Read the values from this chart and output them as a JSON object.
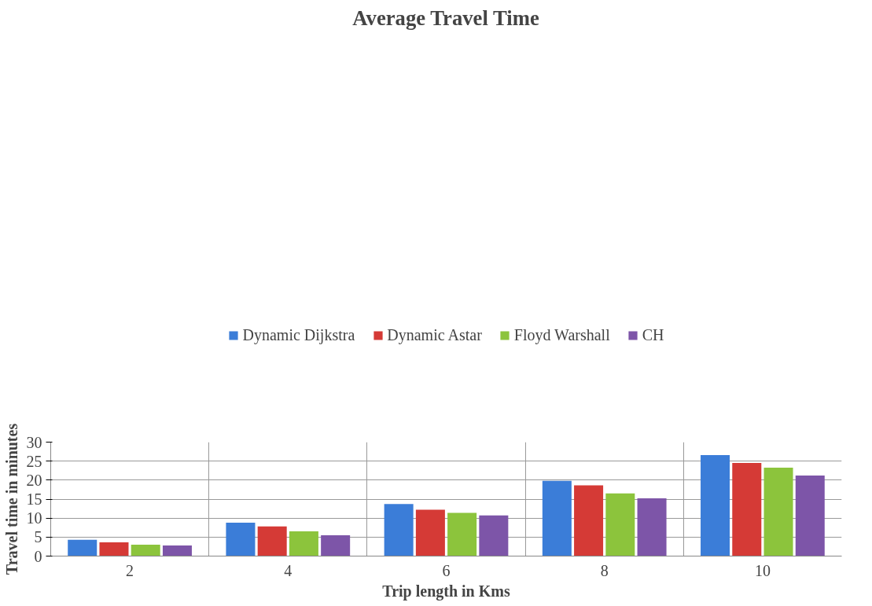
{
  "chart_data": {
    "type": "bar",
    "title": "Average Travel Time",
    "xlabel": "Trip length in Kms",
    "ylabel": "Travel time in minutes",
    "categories": [
      "2",
      "4",
      "6",
      "8",
      "10"
    ],
    "series": [
      {
        "name": "Dynamic Dijkstra",
        "color": "#3b7dd8",
        "values": [
          4.3,
          8.8,
          13.7,
          19.8,
          26.6
        ]
      },
      {
        "name": "Dynamic Astar",
        "color": "#d53a36",
        "values": [
          3.6,
          7.8,
          12.2,
          18.6,
          24.5
        ]
      },
      {
        "name": "Floyd Warshall",
        "color": "#8cc43c",
        "values": [
          3.0,
          6.5,
          11.4,
          16.5,
          23.3
        ]
      },
      {
        "name": "CH",
        "color": "#7d55a8",
        "values": [
          2.8,
          5.5,
          10.7,
          15.2,
          21.2
        ]
      }
    ],
    "ylim": [
      0,
      30
    ],
    "yticks": [
      0,
      5,
      10,
      15,
      20,
      25,
      30
    ],
    "grid": true,
    "legend": "top"
  }
}
